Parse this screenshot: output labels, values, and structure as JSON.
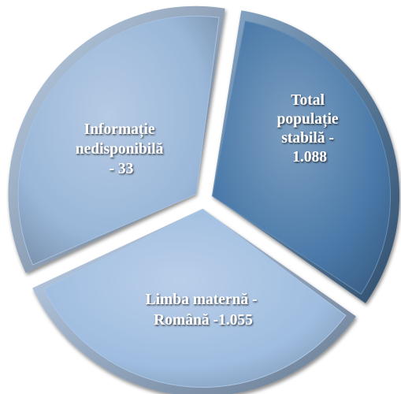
{
  "chart_data": {
    "type": "pie",
    "style": "exploded 3D-bevel pie",
    "slices": [
      {
        "key": "total",
        "label_lines": [
          "Total",
          "populație",
          "stabilă -",
          "1.088"
        ],
        "value": 1088,
        "color": "#4a79a9"
      },
      {
        "key": "romana",
        "label_lines": [
          "Limba maternă -",
          "Română -1.055"
        ],
        "value": 1055,
        "color": "#9fbde0"
      },
      {
        "key": "nedisponibila",
        "label_lines": [
          "Informație",
          "nedisponibilă",
          "- 33"
        ],
        "value": 33,
        "color": "#9ab7d9"
      }
    ]
  }
}
